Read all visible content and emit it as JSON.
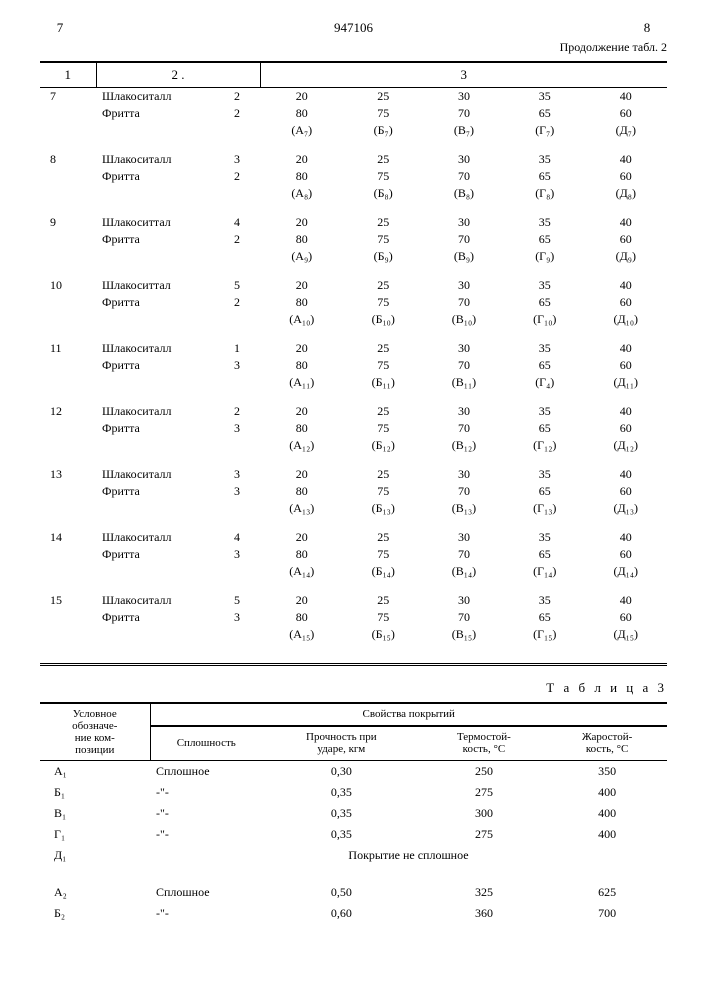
{
  "header": {
    "page_left": "7",
    "doc_number": "947106",
    "page_right": "8",
    "continuation": "Продолжение табл. 2"
  },
  "table2": {
    "head": {
      "c1": "1",
      "c2": "2  .",
      "c3": "3"
    },
    "groups": [
      {
        "n": "7",
        "mat1": "Шлакоситалл",
        "v1": "2",
        "mat2": "Фритта",
        "v2": "2",
        "r1": [
          "20",
          "25",
          "30",
          "35",
          "40"
        ],
        "r2": [
          "80",
          "75",
          "70",
          "65",
          "60"
        ],
        "labels": [
          "(А₇)",
          "(Б₇)",
          "(В₇)",
          "(Г₇)",
          "(Д₇)"
        ]
      },
      {
        "n": "8",
        "mat1": "Шлакоситалл",
        "v1": "3",
        "mat2": "Фритта",
        "v2": "2",
        "r1": [
          "20",
          "25",
          "30",
          "35",
          "40"
        ],
        "r2": [
          "80",
          "75",
          "70",
          "65",
          "60"
        ],
        "labels": [
          "(А₈)",
          "(Б₈)",
          "(В₈)",
          "(Г₈)",
          "(Д₈)"
        ]
      },
      {
        "n": "9",
        "mat1": "Шлакоситтал",
        "v1": "4",
        "mat2": "Фритта",
        "v2": "2",
        "r1": [
          "20",
          "25",
          "30",
          "35",
          "40"
        ],
        "r2": [
          "80",
          "75",
          "70",
          "65",
          "60"
        ],
        "labels": [
          "(А₉)",
          "(Б₉)",
          "(В₉)",
          "(Г₉)",
          "(Д₉)"
        ]
      },
      {
        "n": "10",
        "mat1": "Шлакоситтал",
        "v1": "5",
        "mat2": "Фритта",
        "v2": "2",
        "r1": [
          "20",
          "25",
          "30",
          "35",
          "40"
        ],
        "r2": [
          "80",
          "75",
          "70",
          "65",
          "60"
        ],
        "labels": [
          "(А₁₀)",
          "(Б₁₀)",
          "(В₁₀)",
          "(Г₁₀)",
          "(Д₁₀)"
        ]
      },
      {
        "n": "11",
        "mat1": "Шлакоситалл",
        "v1": "1",
        "mat2": "Фритта",
        "v2": "3",
        "r1": [
          "20",
          "25",
          "30",
          "35",
          "40"
        ],
        "r2": [
          "80",
          "75",
          "70",
          "65",
          "60"
        ],
        "labels": [
          "(А₁₁)",
          "(Б₁₁)",
          "(В₁₁)",
          "(Г₄)",
          "(Д₁₁)"
        ]
      },
      {
        "n": "12",
        "mat1": "Шлакоситалл",
        "v1": "2",
        "mat2": "Фритта",
        "v2": "3",
        "r1": [
          "20",
          "25",
          "30",
          "35",
          "40"
        ],
        "r2": [
          "80",
          "75",
          "70",
          "65",
          "60"
        ],
        "labels": [
          "(А₁₂)",
          "(Б₁₂)",
          "(В₁₂)",
          "(Г₁₂)",
          "(Д₁₂)"
        ]
      },
      {
        "n": "13",
        "mat1": "Шлакоситалл",
        "v1": "3",
        "mat2": "Фритта",
        "v2": "3",
        "r1": [
          "20",
          "25",
          "30",
          "35",
          "40"
        ],
        "r2": [
          "80",
          "75",
          "70",
          "65",
          "60"
        ],
        "labels": [
          "(А₁₃)",
          "(Б₁₃)",
          "(В₁₃)",
          "(Г₁₃)",
          "(Д₁₃)"
        ]
      },
      {
        "n": "14",
        "mat1": "Шлакоситалл",
        "v1": "4",
        "mat2": "Фритта",
        "v2": "3",
        "r1": [
          "20",
          "25",
          "30",
          "35",
          "40"
        ],
        "r2": [
          "80",
          "75",
          "70",
          "65",
          "60"
        ],
        "labels": [
          "(А₁₄)",
          "(Б₁₄)",
          "(В₁₄)",
          "(Г₁₄)",
          "(Д₁₄)"
        ]
      },
      {
        "n": "15",
        "mat1": "Шлакоситалл",
        "v1": "5",
        "mat2": "Фритта",
        "v2": "3",
        "r1": [
          "20",
          "25",
          "30",
          "35",
          "40"
        ],
        "r2": [
          "80",
          "75",
          "70",
          "65",
          "60"
        ],
        "labels": [
          "(А₁₅)",
          "(Б₁₅)",
          "(В₁₅)",
          "(Г₁₅)",
          "(Д₁₅)"
        ]
      }
    ]
  },
  "table3": {
    "title": "Т а б л и ц а   3",
    "head": {
      "col1a": "Условное",
      "col1b": "обозначе-",
      "col1c": "ние ком-",
      "col1d": "позиции",
      "span": "Свойства покрытий",
      "c2": "Сплошность",
      "c3a": "Прочность при",
      "c3b": "ударе, кгм",
      "c4a": "Термостой-",
      "c4b": "кость, °С",
      "c5a": "Жаростой-",
      "c5b": "кость, °С"
    },
    "rows": [
      {
        "id": "А₁",
        "c2": "Сплошное",
        "c3": "0,30",
        "c4": "250",
        "c5": "350"
      },
      {
        "id": "Б₁",
        "c2": "-\"-",
        "c3": "0,35",
        "c4": "275",
        "c5": "400"
      },
      {
        "id": "В₁",
        "c2": "-\"-",
        "c3": "0,35",
        "c4": "300",
        "c5": "400"
      },
      {
        "id": "Г₁",
        "c2": "-\"-",
        "c3": "0,35",
        "c4": "275",
        "c5": "400"
      },
      {
        "id": "Д₁",
        "nosplash": "Покрытие не сплошное"
      },
      {
        "gap": true
      },
      {
        "id": "А₂",
        "c2": "Сплошное",
        "c3": "0,50",
        "c4": "325",
        "c5": "625"
      },
      {
        "id": "Б₂",
        "c2": "-\"-",
        "c3": "0,60",
        "c4": "360",
        "c5": "700"
      }
    ]
  }
}
